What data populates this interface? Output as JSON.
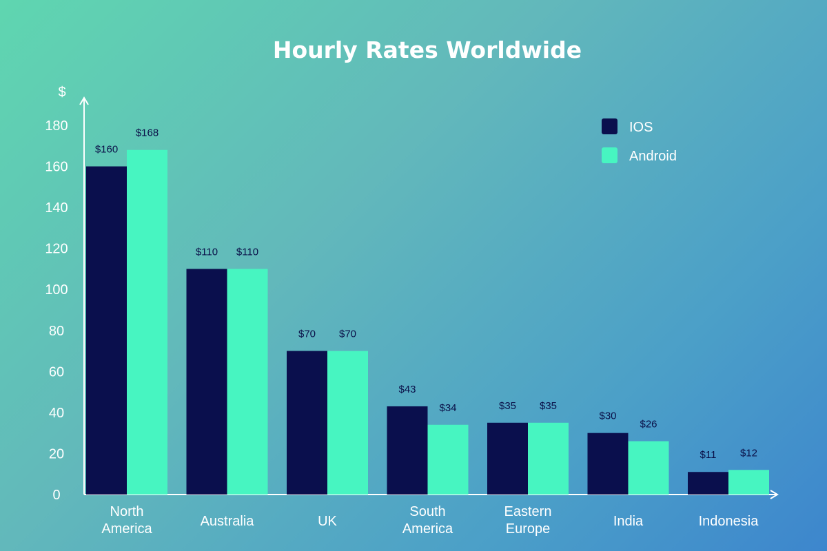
{
  "chart_data": {
    "type": "bar",
    "title": "Hourly Rates Worldwide",
    "ylabel": "$",
    "xlabel": "",
    "ylim": [
      0,
      180
    ],
    "yticks": [
      0,
      20,
      40,
      60,
      80,
      100,
      120,
      140,
      160,
      180
    ],
    "grid": false,
    "legend_position": "top-right",
    "categories": [
      [
        "North",
        "America"
      ],
      [
        "Australia"
      ],
      [
        "UK"
      ],
      [
        "South",
        "America"
      ],
      [
        "Eastern",
        "Europe"
      ],
      [
        "India"
      ],
      [
        "Indonesia"
      ]
    ],
    "series": [
      {
        "name": "IOS",
        "color": "#0a0f4d",
        "values": [
          160,
          110,
          70,
          43,
          35,
          30,
          11
        ],
        "labels": [
          "$160",
          "$110",
          "$70",
          "$43",
          "$35",
          "$30",
          "$11"
        ]
      },
      {
        "name": "Android",
        "color": "#47f5c1",
        "values": [
          168,
          110,
          70,
          34,
          35,
          26,
          12
        ],
        "labels": [
          "$168",
          "$110",
          "$70",
          "$34",
          "$35",
          "$26",
          "$12"
        ]
      }
    ]
  }
}
